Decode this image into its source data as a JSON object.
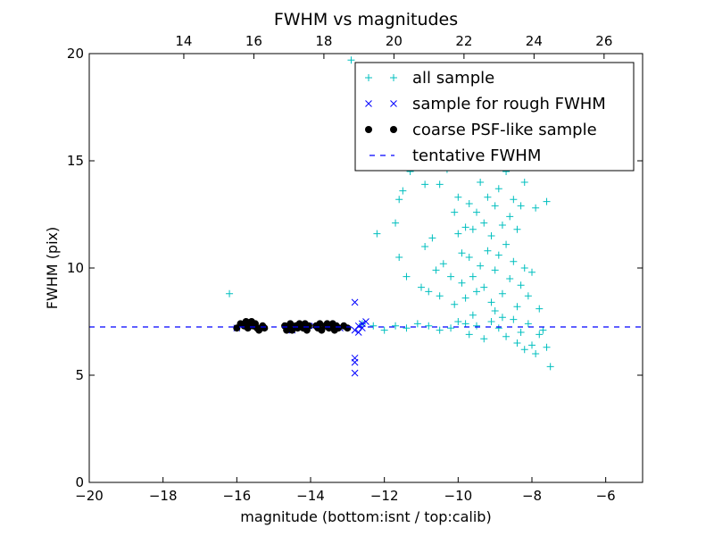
{
  "chart_data": {
    "type": "scatter",
    "title": "FWHM vs magnitudes",
    "xlabel": "magnitude (bottom:isnt / top:calib)",
    "ylabel": "FWHM (pix)",
    "xlim": [
      -20,
      -5
    ],
    "ylim": [
      0,
      20
    ],
    "top_xlim": [
      11.3,
      27.1
    ],
    "x_ticks": [
      -20,
      -18,
      -16,
      -14,
      -12,
      -10,
      -8,
      -6
    ],
    "x_tick_labels": [
      "−20",
      "−18",
      "−16",
      "−14",
      "−12",
      "−10",
      "−8",
      "−6"
    ],
    "top_x_ticks": [
      14,
      16,
      18,
      20,
      22,
      24,
      26
    ],
    "top_x_tick_labels": [
      "14",
      "16",
      "18",
      "20",
      "22",
      "24",
      "26"
    ],
    "y_ticks": [
      0,
      5,
      10,
      15,
      20
    ],
    "y_tick_labels": [
      "0",
      "5",
      "10",
      "15",
      "20"
    ],
    "grid": false,
    "legend_position": "top-right",
    "colors": {
      "all_sample": "#00bfbf",
      "rough_sample": "#0000ff",
      "psf_sample": "#000000",
      "tentative_fwhm": "#0000ff"
    },
    "series": [
      {
        "name": "all sample",
        "marker": "plus",
        "points": [
          [
            -16.2,
            8.8
          ],
          [
            -12.9,
            19.7
          ],
          [
            -12.2,
            11.6
          ],
          [
            -11.7,
            12.1
          ],
          [
            -11.6,
            13.2
          ],
          [
            -11.5,
            13.6
          ],
          [
            -11.6,
            10.5
          ],
          [
            -11.4,
            9.6
          ],
          [
            -11.3,
            14.5
          ],
          [
            -11.2,
            15.2
          ],
          [
            -11.0,
            9.1
          ],
          [
            -10.9,
            11.0
          ],
          [
            -10.9,
            13.9
          ],
          [
            -10.8,
            8.9
          ],
          [
            -10.7,
            11.4
          ],
          [
            -10.6,
            9.9
          ],
          [
            -10.5,
            13.9
          ],
          [
            -10.5,
            8.7
          ],
          [
            -10.4,
            10.2
          ],
          [
            -10.3,
            14.6
          ],
          [
            -10.2,
            9.6
          ],
          [
            -10.1,
            12.6
          ],
          [
            -10.1,
            8.3
          ],
          [
            -10.0,
            11.6
          ],
          [
            -10.0,
            13.3
          ],
          [
            -9.9,
            10.7
          ],
          [
            -9.9,
            9.3
          ],
          [
            -9.8,
            11.9
          ],
          [
            -9.8,
            8.6
          ],
          [
            -9.7,
            10.5
          ],
          [
            -9.7,
            13.0
          ],
          [
            -9.6,
            9.6
          ],
          [
            -9.6,
            11.8
          ],
          [
            -9.5,
            8.9
          ],
          [
            -9.5,
            12.6
          ],
          [
            -9.4,
            10.1
          ],
          [
            -9.4,
            14.0
          ],
          [
            -9.3,
            12.1
          ],
          [
            -9.3,
            9.1
          ],
          [
            -9.2,
            13.3
          ],
          [
            -9.2,
            10.8
          ],
          [
            -9.1,
            8.4
          ],
          [
            -9.1,
            11.5
          ],
          [
            -9.0,
            12.9
          ],
          [
            -9.0,
            9.9
          ],
          [
            -8.9,
            10.6
          ],
          [
            -8.9,
            13.7
          ],
          [
            -8.8,
            12.0
          ],
          [
            -8.8,
            8.8
          ],
          [
            -8.7,
            14.5
          ],
          [
            -8.7,
            11.1
          ],
          [
            -8.6,
            9.5
          ],
          [
            -8.6,
            12.4
          ],
          [
            -8.5,
            10.3
          ],
          [
            -8.5,
            13.2
          ],
          [
            -8.4,
            8.2
          ],
          [
            -8.4,
            11.8
          ],
          [
            -8.3,
            9.2
          ],
          [
            -8.3,
            12.9
          ],
          [
            -8.2,
            10.0
          ],
          [
            -8.2,
            14.0
          ],
          [
            -8.1,
            8.7
          ],
          [
            -8.0,
            9.8
          ],
          [
            -7.9,
            12.8
          ],
          [
            -7.8,
            8.1
          ],
          [
            -7.6,
            13.1
          ],
          [
            -7.5,
            5.4
          ],
          [
            -9.4,
            18.6
          ],
          [
            -8.6,
            19.2
          ],
          [
            -8.9,
            16.8
          ],
          [
            -9.2,
            16.1
          ],
          [
            -8.7,
            15.6
          ],
          [
            -9.0,
            15.0
          ],
          [
            -9.1,
            7.5
          ],
          [
            -8.9,
            7.2
          ],
          [
            -8.7,
            6.8
          ],
          [
            -8.5,
            7.6
          ],
          [
            -8.4,
            6.5
          ],
          [
            -8.3,
            7.0
          ],
          [
            -8.2,
            6.2
          ],
          [
            -8.1,
            7.4
          ],
          [
            -8.0,
            6.4
          ],
          [
            -7.9,
            6.0
          ],
          [
            -7.8,
            6.9
          ],
          [
            -7.7,
            7.1
          ],
          [
            -7.6,
            6.3
          ],
          [
            -9.3,
            6.7
          ],
          [
            -9.5,
            7.3
          ],
          [
            -9.7,
            6.9
          ],
          [
            -10.0,
            7.5
          ],
          [
            -10.2,
            7.2
          ],
          [
            -10.5,
            7.1
          ],
          [
            -10.8,
            7.3
          ],
          [
            -11.1,
            7.4
          ],
          [
            -11.4,
            7.2
          ],
          [
            -11.7,
            7.3
          ],
          [
            -12.0,
            7.1
          ],
          [
            -12.3,
            7.3
          ],
          [
            -12.6,
            7.4
          ],
          [
            -9.6,
            7.8
          ],
          [
            -9.8,
            7.4
          ],
          [
            -9.0,
            8.0
          ],
          [
            -8.8,
            7.7
          ]
        ]
      },
      {
        "name": "sample for rough FWHM",
        "marker": "x",
        "points": [
          [
            -12.8,
            8.4
          ],
          [
            -12.8,
            5.8
          ],
          [
            -12.8,
            5.6
          ],
          [
            -12.8,
            5.1
          ],
          [
            -12.8,
            7.1
          ],
          [
            -12.7,
            7.3
          ],
          [
            -12.6,
            7.4
          ],
          [
            -12.5,
            7.5
          ],
          [
            -12.7,
            7.0
          ],
          [
            -12.6,
            7.2
          ],
          [
            -16.0,
            7.2
          ],
          [
            -15.5,
            7.3
          ],
          [
            -14.5,
            7.1
          ],
          [
            -13.9,
            7.3
          ],
          [
            -13.2,
            7.2
          ]
        ]
      },
      {
        "name": "coarse PSF-like sample",
        "marker": "dot",
        "points": [
          [
            -16.0,
            7.2
          ],
          [
            -15.9,
            7.4
          ],
          [
            -15.8,
            7.3
          ],
          [
            -15.75,
            7.5
          ],
          [
            -15.7,
            7.2
          ],
          [
            -15.65,
            7.4
          ],
          [
            -15.6,
            7.5
          ],
          [
            -15.55,
            7.3
          ],
          [
            -15.5,
            7.4
          ],
          [
            -15.45,
            7.2
          ],
          [
            -15.4,
            7.1
          ],
          [
            -15.3,
            7.3
          ],
          [
            -15.25,
            7.2
          ],
          [
            -14.7,
            7.3
          ],
          [
            -14.65,
            7.1
          ],
          [
            -14.6,
            7.2
          ],
          [
            -14.55,
            7.4
          ],
          [
            -14.5,
            7.1
          ],
          [
            -14.4,
            7.3
          ],
          [
            -14.35,
            7.2
          ],
          [
            -14.3,
            7.4
          ],
          [
            -14.25,
            7.3
          ],
          [
            -14.2,
            7.2
          ],
          [
            -14.15,
            7.4
          ],
          [
            -14.1,
            7.1
          ],
          [
            -14.05,
            7.3
          ],
          [
            -13.85,
            7.3
          ],
          [
            -13.8,
            7.2
          ],
          [
            -13.75,
            7.4
          ],
          [
            -13.7,
            7.1
          ],
          [
            -13.6,
            7.3
          ],
          [
            -13.55,
            7.4
          ],
          [
            -13.5,
            7.2
          ],
          [
            -13.45,
            7.3
          ],
          [
            -13.4,
            7.4
          ],
          [
            -13.35,
            7.1
          ],
          [
            -13.3,
            7.3
          ],
          [
            -13.25,
            7.2
          ],
          [
            -13.1,
            7.3
          ],
          [
            -13.0,
            7.2
          ]
        ]
      },
      {
        "name": "tentative FWHM",
        "marker": "dashed-line",
        "y": 7.25
      }
    ]
  }
}
